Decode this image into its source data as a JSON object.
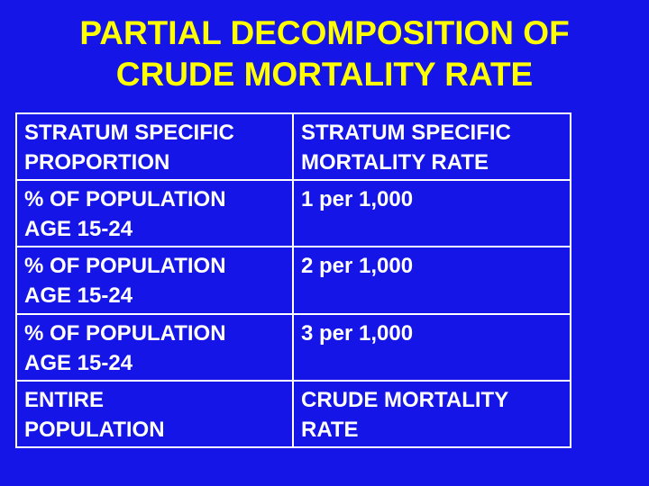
{
  "slide": {
    "title_lines": [
      "PARTIAL DECOMPOSITION OF",
      "CRUDE MORTALITY RATE"
    ],
    "colors": {
      "background": "#1515e8",
      "title": "#ffff00",
      "text": "#ffffff",
      "border": "#ffffff"
    }
  },
  "table": {
    "rows": [
      {
        "col1": [
          "STRATUM SPECIFIC",
          "PROPORTION"
        ],
        "col2": [
          "STRATUM SPECIFIC",
          "MORTALITY RATE"
        ]
      },
      {
        "col1": [
          "% OF POPULATION",
          "AGE 15-24"
        ],
        "col2": [
          "1 per 1,000"
        ]
      },
      {
        "col1": [
          "% OF POPULATION",
          "AGE 15-24"
        ],
        "col2": [
          "2 per 1,000"
        ]
      },
      {
        "col1": [
          "% OF POPULATION",
          "AGE 15-24"
        ],
        "col2": [
          "3 per 1,000"
        ]
      },
      {
        "col1": [
          "ENTIRE",
          "POPULATION"
        ],
        "col2": [
          "CRUDE MORTALITY",
          "RATE"
        ]
      }
    ]
  }
}
